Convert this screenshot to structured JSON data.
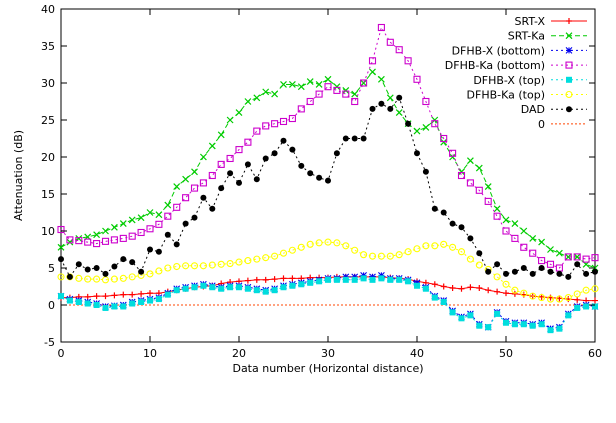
{
  "chart_data": {
    "type": "line",
    "title": "",
    "xlabel": "Data number (Horizontal distance)",
    "ylabel": "Attenuation (dB)",
    "xlim": [
      0,
      60
    ],
    "ylim": [
      -5,
      40
    ],
    "xticks": [
      0,
      10,
      20,
      30,
      40,
      50,
      60
    ],
    "yticks": [
      -5,
      0,
      5,
      10,
      15,
      20,
      25,
      30,
      35,
      40
    ],
    "grid": false,
    "legend_position": "top-right",
    "series": [
      {
        "name": "SRT-X",
        "color": "#ff0000",
        "marker": "plus",
        "dash": "solid",
        "x": [
          0,
          1,
          2,
          3,
          4,
          5,
          6,
          7,
          8,
          9,
          10,
          11,
          12,
          13,
          14,
          15,
          16,
          17,
          18,
          19,
          20,
          21,
          22,
          23,
          24,
          25,
          26,
          27,
          28,
          29,
          30,
          31,
          32,
          33,
          34,
          35,
          36,
          37,
          38,
          39,
          40,
          41,
          42,
          43,
          44,
          45,
          46,
          47,
          48,
          49,
          50,
          51,
          52,
          53,
          54,
          55,
          56,
          57,
          58,
          59,
          60
        ],
        "values": [
          1.0,
          1.0,
          1.1,
          1.1,
          1.2,
          1.2,
          1.3,
          1.4,
          1.4,
          1.5,
          1.6,
          1.6,
          1.8,
          2.0,
          2.2,
          2.4,
          2.5,
          2.6,
          2.9,
          3.1,
          3.2,
          3.3,
          3.4,
          3.4,
          3.5,
          3.6,
          3.6,
          3.6,
          3.7,
          3.7,
          3.7,
          3.8,
          3.8,
          3.8,
          3.8,
          3.8,
          3.8,
          3.7,
          3.6,
          3.5,
          3.2,
          3.0,
          2.8,
          2.5,
          2.3,
          2.2,
          2.4,
          2.3,
          2.0,
          1.8,
          1.6,
          1.5,
          1.4,
          1.2,
          1.1,
          1.0,
          0.9,
          0.8,
          0.7,
          0.6,
          0.6
        ]
      },
      {
        "name": "SRT-Ka",
        "color": "#00cc00",
        "marker": "x",
        "dash": "dashed",
        "x": [
          0,
          1,
          2,
          3,
          4,
          5,
          6,
          7,
          8,
          9,
          10,
          11,
          12,
          13,
          14,
          15,
          16,
          17,
          18,
          19,
          20,
          21,
          22,
          23,
          24,
          25,
          26,
          27,
          28,
          29,
          30,
          31,
          32,
          33,
          34,
          35,
          36,
          37,
          38,
          39,
          40,
          41,
          42,
          43,
          44,
          45,
          46,
          47,
          48,
          49,
          50,
          51,
          52,
          53,
          54,
          55,
          56,
          57,
          58,
          59,
          60
        ],
        "values": [
          7.8,
          8.5,
          9.0,
          9.2,
          9.5,
          10.0,
          10.5,
          11.0,
          11.5,
          11.8,
          12.5,
          12.2,
          13.5,
          16.0,
          17.0,
          18.0,
          20.0,
          21.5,
          23.0,
          25.0,
          26.0,
          27.5,
          28.0,
          28.8,
          28.5,
          29.8,
          29.8,
          29.5,
          30.2,
          29.8,
          30.5,
          29.5,
          29.0,
          28.5,
          30.0,
          31.5,
          30.5,
          28.0,
          26.0,
          24.5,
          23.5,
          24.0,
          25.0,
          22.0,
          20.0,
          18.0,
          19.5,
          18.5,
          16.0,
          13.0,
          11.5,
          11.0,
          10.0,
          9.0,
          8.5,
          7.5,
          7.0,
          6.5,
          6.5,
          5.5,
          5.0
        ]
      },
      {
        "name": "DFHB-X (bottom)",
        "color": "#0000ee",
        "marker": "star",
        "dash": "dotted",
        "x": [
          0,
          1,
          2,
          3,
          4,
          5,
          6,
          7,
          8,
          9,
          10,
          11,
          12,
          13,
          14,
          15,
          16,
          17,
          18,
          19,
          20,
          21,
          22,
          23,
          24,
          25,
          26,
          27,
          28,
          29,
          30,
          31,
          32,
          33,
          34,
          35,
          36,
          37,
          38,
          39,
          40,
          41,
          42,
          43,
          44,
          45,
          46,
          47,
          48,
          49,
          50,
          51,
          52,
          53,
          54,
          55,
          56,
          57,
          58,
          59,
          60
        ],
        "values": [
          1.2,
          0.8,
          0.6,
          0.4,
          0.2,
          -0.2,
          -0.1,
          0.0,
          0.4,
          0.6,
          0.8,
          1.0,
          1.6,
          2.2,
          2.4,
          2.6,
          2.8,
          2.6,
          2.4,
          2.6,
          2.6,
          2.4,
          2.2,
          2.0,
          2.2,
          2.6,
          2.8,
          3.0,
          3.2,
          3.4,
          3.6,
          3.6,
          3.8,
          3.8,
          4.0,
          3.8,
          4.0,
          3.6,
          3.6,
          3.4,
          3.0,
          2.4,
          1.2,
          0.6,
          -0.8,
          -1.6,
          -1.2,
          -2.6,
          -3.0,
          -1.0,
          -2.2,
          -2.4,
          -2.4,
          -2.6,
          -2.4,
          -3.2,
          -3.0,
          -1.2,
          -0.2,
          0.0,
          -0.2
        ]
      },
      {
        "name": "DFHB-Ka (bottom)",
        "color": "#cc00cc",
        "marker": "square",
        "dash": "dotted",
        "x": [
          0,
          1,
          2,
          3,
          4,
          5,
          6,
          7,
          8,
          9,
          10,
          11,
          12,
          13,
          14,
          15,
          16,
          17,
          18,
          19,
          20,
          21,
          22,
          23,
          24,
          25,
          26,
          27,
          28,
          29,
          30,
          31,
          32,
          33,
          34,
          35,
          36,
          37,
          38,
          39,
          40,
          41,
          42,
          43,
          44,
          45,
          46,
          47,
          48,
          49,
          50,
          51,
          52,
          53,
          54,
          55,
          56,
          57,
          58,
          59,
          60
        ],
        "values": [
          10.2,
          8.8,
          8.7,
          8.5,
          8.3,
          8.6,
          8.8,
          9.0,
          9.3,
          9.8,
          10.3,
          10.9,
          12.0,
          13.2,
          14.5,
          15.8,
          16.5,
          17.5,
          19.0,
          19.8,
          21.0,
          22.0,
          23.5,
          24.2,
          24.5,
          24.8,
          25.2,
          26.5,
          27.5,
          28.5,
          29.5,
          29.0,
          28.5,
          27.5,
          30.0,
          33.0,
          37.5,
          35.5,
          34.5,
          33.0,
          30.5,
          27.5,
          24.5,
          22.5,
          20.5,
          17.5,
          16.5,
          15.5,
          14.0,
          12.0,
          10.0,
          9.0,
          7.8,
          7.0,
          6.0,
          5.5,
          5.0,
          6.5,
          6.5,
          6.2,
          6.4
        ]
      },
      {
        "name": "DFHB-X (top)",
        "color": "#00dddd",
        "marker": "filled-square",
        "dash": "dotted",
        "x": [
          0,
          1,
          2,
          3,
          4,
          5,
          6,
          7,
          8,
          9,
          10,
          11,
          12,
          13,
          14,
          15,
          16,
          17,
          18,
          19,
          20,
          21,
          22,
          23,
          24,
          25,
          26,
          27,
          28,
          29,
          30,
          31,
          32,
          33,
          34,
          35,
          36,
          37,
          38,
          39,
          40,
          41,
          42,
          43,
          44,
          45,
          46,
          47,
          48,
          49,
          50,
          51,
          52,
          53,
          54,
          55,
          56,
          57,
          58,
          59,
          60
        ],
        "values": [
          1.2,
          0.6,
          0.4,
          0.2,
          0.0,
          -0.4,
          -0.2,
          -0.2,
          0.2,
          0.4,
          0.6,
          0.8,
          1.4,
          2.0,
          2.2,
          2.4,
          2.6,
          2.4,
          2.2,
          2.4,
          2.4,
          2.2,
          2.0,
          1.8,
          2.0,
          2.4,
          2.6,
          2.8,
          3.0,
          3.2,
          3.4,
          3.4,
          3.4,
          3.4,
          3.6,
          3.4,
          3.6,
          3.4,
          3.4,
          3.2,
          2.6,
          2.2,
          1.0,
          0.4,
          -1.0,
          -1.8,
          -1.4,
          -2.8,
          -3.0,
          -1.2,
          -2.4,
          -2.6,
          -2.6,
          -2.8,
          -2.6,
          -3.4,
          -3.2,
          -1.4,
          -0.4,
          -0.2,
          -0.2
        ]
      },
      {
        "name": "DFHB-Ka (top)",
        "color": "#ffff00",
        "marker": "circle",
        "dash": "dotted",
        "x": [
          0,
          1,
          2,
          3,
          4,
          5,
          6,
          7,
          8,
          9,
          10,
          11,
          12,
          13,
          14,
          15,
          16,
          17,
          18,
          19,
          20,
          21,
          22,
          23,
          24,
          25,
          26,
          27,
          28,
          29,
          30,
          31,
          32,
          33,
          34,
          35,
          36,
          37,
          38,
          39,
          40,
          41,
          42,
          43,
          44,
          45,
          46,
          47,
          48,
          49,
          50,
          51,
          52,
          53,
          54,
          55,
          56,
          57,
          58,
          59,
          60
        ],
        "values": [
          3.8,
          3.8,
          3.6,
          3.5,
          3.5,
          3.4,
          3.5,
          3.6,
          3.8,
          4.0,
          4.2,
          4.6,
          5.0,
          5.2,
          5.3,
          5.3,
          5.3,
          5.4,
          5.5,
          5.6,
          5.8,
          6.0,
          6.2,
          6.4,
          6.6,
          7.0,
          7.4,
          7.8,
          8.2,
          8.4,
          8.5,
          8.4,
          8.0,
          7.4,
          6.8,
          6.6,
          6.6,
          6.6,
          6.8,
          7.2,
          7.6,
          8.0,
          8.0,
          8.2,
          7.8,
          7.2,
          6.2,
          5.4,
          4.8,
          3.8,
          2.8,
          2.0,
          1.6,
          1.2,
          1.0,
          0.8,
          0.8,
          1.0,
          1.5,
          2.0,
          2.2
        ]
      },
      {
        "name": "DAD",
        "color": "#000000",
        "marker": "filled-circle",
        "dash": "dotted",
        "x": [
          0,
          1,
          2,
          3,
          4,
          5,
          6,
          7,
          8,
          9,
          10,
          11,
          12,
          13,
          14,
          15,
          16,
          17,
          18,
          19,
          20,
          21,
          22,
          23,
          24,
          25,
          26,
          27,
          28,
          29,
          30,
          31,
          32,
          33,
          34,
          35,
          36,
          37,
          38,
          39,
          40,
          41,
          42,
          43,
          44,
          45,
          46,
          47,
          48,
          49,
          50,
          51,
          52,
          53,
          54,
          55,
          56,
          57,
          58,
          59,
          60
        ],
        "values": [
          6.2,
          3.8,
          5.5,
          4.8,
          5.0,
          4.2,
          5.2,
          6.2,
          5.8,
          4.5,
          7.5,
          7.2,
          9.5,
          8.2,
          11.0,
          11.8,
          14.5,
          13.0,
          15.8,
          17.8,
          16.5,
          19.0,
          17.0,
          19.8,
          20.5,
          22.2,
          21.0,
          18.8,
          17.8,
          17.2,
          16.8,
          20.5,
          22.5,
          22.5,
          22.5,
          26.5,
          27.2,
          26.5,
          28.0,
          24.5,
          20.5,
          18.0,
          13.0,
          12.5,
          11.0,
          10.5,
          9.0,
          7.0,
          4.5,
          5.5,
          4.2,
          4.5,
          5.0,
          4.2,
          5.0,
          4.5,
          4.2,
          3.8,
          5.5,
          4.2,
          4.5
        ]
      },
      {
        "name": "0",
        "color": "#ff4400",
        "marker": "none",
        "dash": "dotted-fine",
        "x": [
          0,
          60
        ],
        "values": [
          0,
          0
        ]
      }
    ]
  }
}
